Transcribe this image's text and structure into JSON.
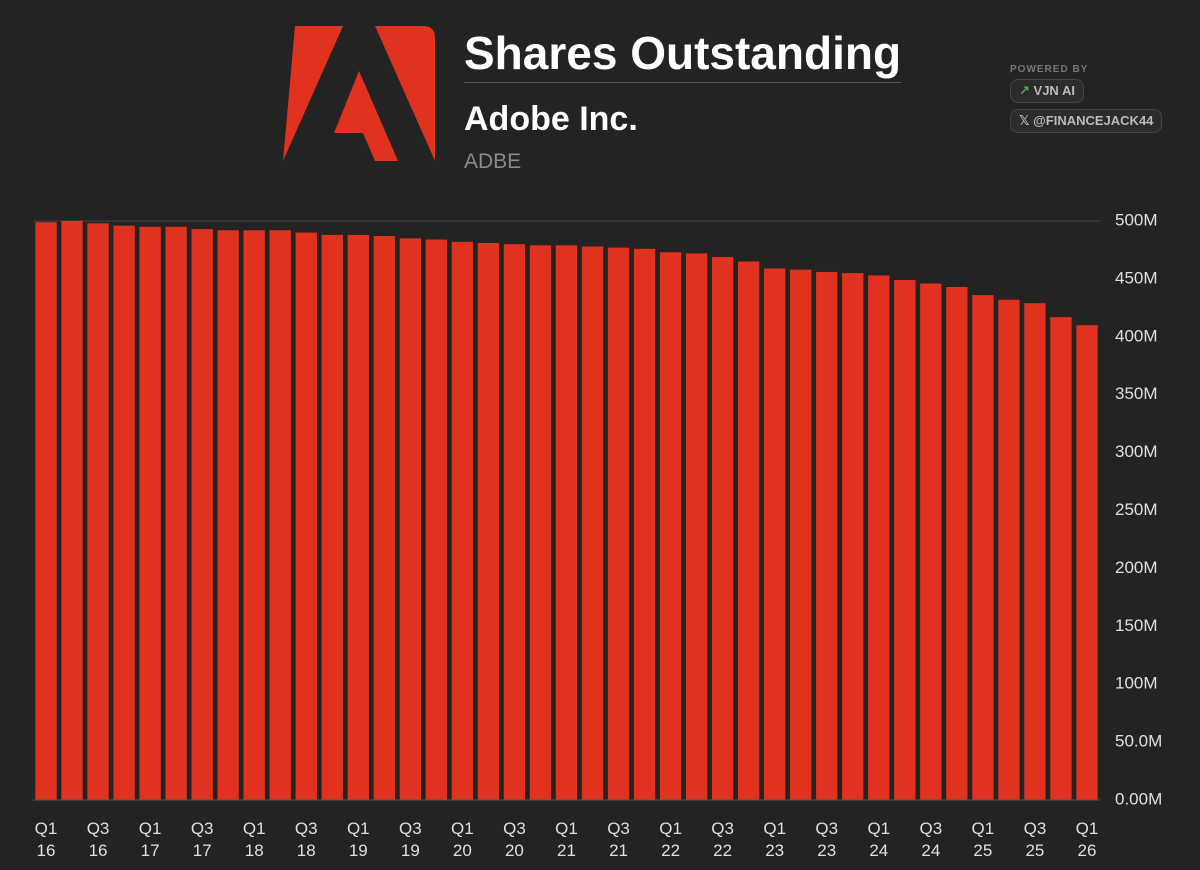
{
  "header": {
    "title": "Shares Outstanding",
    "company": "Adobe Inc.",
    "ticker": "ADBE",
    "powered_by": "POWERED BY",
    "brand": "VJN AI",
    "handle": "@FINANCEJACK44"
  },
  "chart_data": {
    "type": "bar",
    "color": "#e1321f",
    "grid": false,
    "categories": [
      "Q1 16",
      null,
      "Q3 16",
      null,
      "Q1 17",
      null,
      "Q3 17",
      null,
      "Q1 18",
      null,
      "Q3 18",
      null,
      "Q1 19",
      null,
      "Q3 19",
      null,
      "Q1 20",
      null,
      "Q3 20",
      null,
      "Q1 21",
      null,
      "Q3 21",
      null,
      "Q1 22",
      null,
      "Q3 22",
      null,
      "Q1 23",
      null,
      "Q3 23",
      null,
      "Q1 24",
      null,
      "Q3 24",
      null,
      "Q1 25",
      null,
      "Q3 25",
      null,
      "Q1 26"
    ],
    "values": [
      499,
      500,
      498,
      496,
      495,
      495,
      493,
      492,
      492,
      492,
      490,
      488,
      488,
      487,
      485,
      484,
      482,
      481,
      480,
      479,
      479,
      478,
      477,
      476,
      473,
      472,
      469,
      465,
      459,
      458,
      456,
      455,
      453,
      449,
      446,
      443,
      436,
      432,
      429,
      417,
      410
    ],
    "ylim": [
      0,
      500
    ],
    "yticks": [
      {
        "value": 0,
        "label": "0.00M"
      },
      {
        "value": 50,
        "label": "50.0M"
      },
      {
        "value": 100,
        "label": "100M"
      },
      {
        "value": 150,
        "label": "150M"
      },
      {
        "value": 200,
        "label": "200M"
      },
      {
        "value": 250,
        "label": "250M"
      },
      {
        "value": 300,
        "label": "300M"
      },
      {
        "value": 350,
        "label": "350M"
      },
      {
        "value": 400,
        "label": "400M"
      },
      {
        "value": 450,
        "label": "450M"
      },
      {
        "value": 500,
        "label": "500M"
      }
    ]
  }
}
